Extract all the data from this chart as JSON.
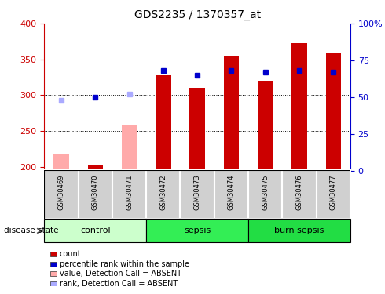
{
  "title": "GDS2235 / 1370357_at",
  "samples": [
    "GSM30469",
    "GSM30470",
    "GSM30471",
    "GSM30472",
    "GSM30473",
    "GSM30474",
    "GSM30475",
    "GSM30476",
    "GSM30477"
  ],
  "groups": [
    {
      "name": "control",
      "indices": [
        0,
        1,
        2
      ],
      "color": "#ccffcc"
    },
    {
      "name": "sepsis",
      "indices": [
        3,
        4,
        5
      ],
      "color": "#33ee55"
    },
    {
      "name": "burn sepsis",
      "indices": [
        6,
        7,
        8
      ],
      "color": "#22dd44"
    }
  ],
  "count_values": [
    null,
    203,
    null,
    328,
    310,
    355,
    320,
    373,
    360
  ],
  "count_absent_values": [
    218,
    null,
    258,
    null,
    null,
    null,
    null,
    null,
    null
  ],
  "rank_values": [
    null,
    50,
    null,
    68,
    65,
    68,
    67,
    68,
    67
  ],
  "rank_absent_values": [
    48,
    null,
    52,
    null,
    null,
    null,
    null,
    null,
    null
  ],
  "ylim_left": [
    195,
    400
  ],
  "ylim_right": [
    0,
    100
  ],
  "yticks_left": [
    200,
    250,
    300,
    350,
    400
  ],
  "yticks_right": [
    0,
    25,
    50,
    75,
    100
  ],
  "count_color": "#cc0000",
  "count_absent_color": "#ffaaaa",
  "rank_color": "#0000cc",
  "rank_absent_color": "#aaaaff",
  "label_color_left": "#cc0000",
  "label_color_right": "#0000cc",
  "disease_state_label": "disease state",
  "legend_items": [
    {
      "label": "count",
      "color": "#cc0000"
    },
    {
      "label": "percentile rank within the sample",
      "color": "#0000cc"
    },
    {
      "label": "value, Detection Call = ABSENT",
      "color": "#ffaaaa"
    },
    {
      "label": "rank, Detection Call = ABSENT",
      "color": "#aaaaff"
    }
  ],
  "sample_box_color": "#d0d0d0",
  "bar_width": 0.45
}
